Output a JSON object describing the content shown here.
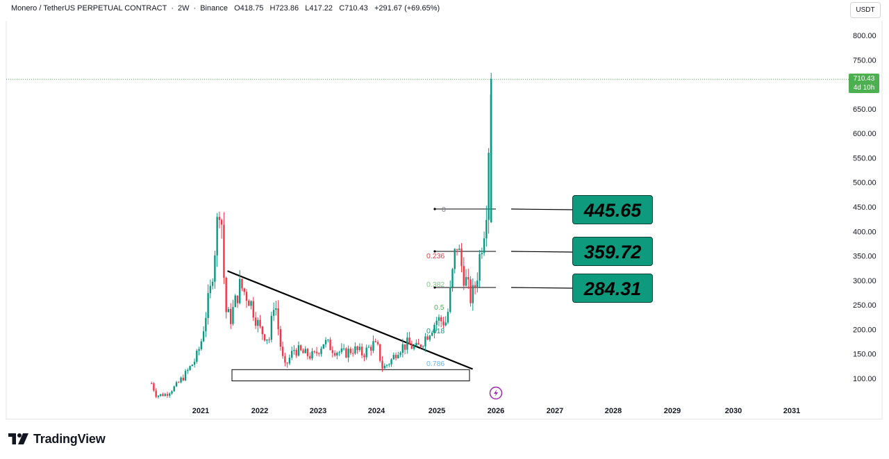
{
  "header": {
    "symbol": "Monero / TetherUS PERPETUAL CONTRACT",
    "interval": "2W",
    "exchange": "Binance",
    "open": "O418.75",
    "high": "H723.86",
    "low": "L417.22",
    "close": "C710.43",
    "change": "+291.67 (+69.65%)"
  },
  "currency": "USDT",
  "last_price": {
    "value": "710.43",
    "countdown": "4d 10h",
    "color": "#4caf50"
  },
  "levels": [
    {
      "value": "445.65",
      "price": 445.65
    },
    {
      "value": "359.72",
      "price": 359.72
    },
    {
      "value": "284.31",
      "price": 284.31
    }
  ],
  "fib": [
    {
      "label": "0",
      "price": 445.65,
      "color": "#787b86"
    },
    {
      "label": "0.236",
      "price": 359.72,
      "color": "#f23645"
    },
    {
      "label": "0.382",
      "price": 284.31,
      "color": "#81c784"
    },
    {
      "label": "0.5",
      "price": 248,
      "color": "#4caf50"
    },
    {
      "label": "0.618",
      "price": 205,
      "color": "#089981"
    },
    {
      "label": "0.786",
      "price": 130,
      "color": "#64b5f6"
    }
  ],
  "brand": "TradingView",
  "colors": {
    "up": "#089981",
    "down": "#f23645",
    "box": "#0e9a7c"
  },
  "chart_data": {
    "type": "candlestick",
    "y_axis_ticks": [
      "800.00",
      "750.00",
      "700.00",
      "650.00",
      "600.00",
      "550.00",
      "500.00",
      "450.00",
      "400.00",
      "350.00",
      "300.00",
      "250.00",
      "200.00",
      "150.00",
      "100.00"
    ],
    "x_axis_ticks": [
      "2021",
      "2022",
      "2023",
      "2024",
      "2025",
      "2026",
      "2027",
      "2028",
      "2029",
      "2030",
      "2031"
    ],
    "ylim": [
      70,
      820
    ],
    "close_path": [
      [
        "2020-03",
        90
      ],
      [
        "2020-04",
        65
      ],
      [
        "2020-06",
        68
      ],
      [
        "2020-08",
        85
      ],
      [
        "2020-10",
        110
      ],
      [
        "2020-12",
        140
      ],
      [
        "2021-01",
        170
      ],
      [
        "2021-02",
        230
      ],
      [
        "2021-03",
        280
      ],
      [
        "2021-04",
        380
      ],
      [
        "2021-05",
        480
      ],
      [
        "2021-06",
        240
      ],
      [
        "2021-07",
        220
      ],
      [
        "2021-09",
        290
      ],
      [
        "2021-11",
        260
      ],
      [
        "2022-01",
        200
      ],
      [
        "2022-03",
        180
      ],
      [
        "2022-04",
        270
      ],
      [
        "2022-05",
        180
      ],
      [
        "2022-06",
        120
      ],
      [
        "2022-08",
        160
      ],
      [
        "2022-10",
        150
      ],
      [
        "2022-12",
        145
      ],
      [
        "2023-02",
        175
      ],
      [
        "2023-04",
        160
      ],
      [
        "2023-06",
        150
      ],
      [
        "2023-08",
        160
      ],
      [
        "2023-10",
        150
      ],
      [
        "2023-12",
        170
      ],
      [
        "2024-01",
        160
      ],
      [
        "2024-02",
        120
      ],
      [
        "2024-04",
        140
      ],
      [
        "2024-05",
        160
      ],
      [
        "2024-07",
        170
      ],
      [
        "2024-09",
        160
      ],
      [
        "2024-11",
        190
      ],
      [
        "2025-01",
        220
      ],
      [
        "2025-03",
        215
      ],
      [
        "2025-05",
        380
      ],
      [
        "2025-06",
        330
      ],
      [
        "2025-08",
        260
      ],
      [
        "2025-09",
        300
      ],
      [
        "2025-10",
        370
      ],
      [
        "2025-11",
        440
      ],
      [
        "2025-12",
        710
      ]
    ],
    "annotations": {
      "triangle_trendline": [
        [
          "2021-07",
          315
        ],
        [
          "2025-08",
          122
        ]
      ],
      "support_box": [
        [
          "2021-07",
          95
        ],
        [
          "2025-08",
          118
        ]
      ]
    }
  }
}
